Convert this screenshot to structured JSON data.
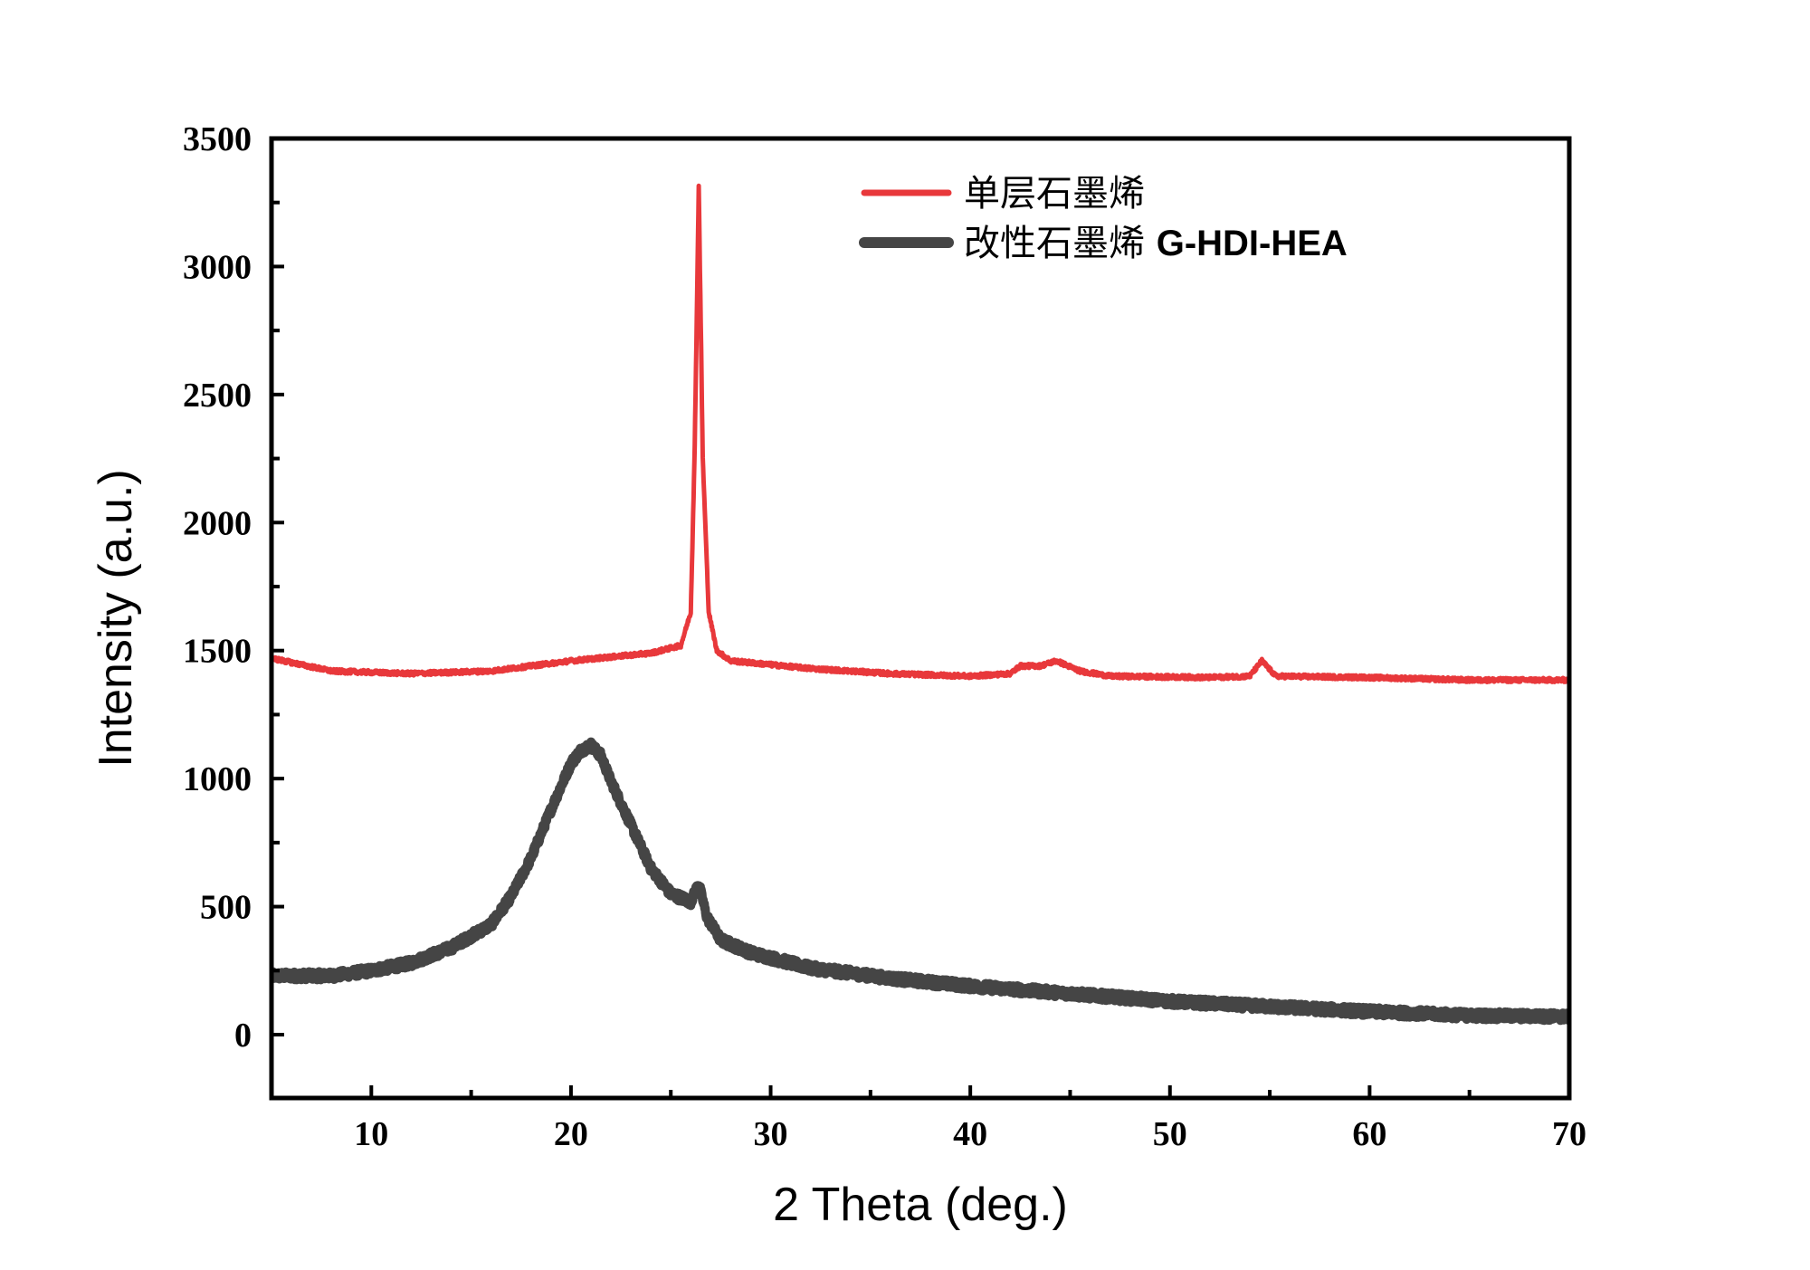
{
  "chart_data": {
    "type": "line",
    "title": "",
    "xlabel": "2 Theta (deg.)",
    "ylabel": "Intensity (a.u.)",
    "xlim": [
      5,
      70
    ],
    "ylim": [
      -250,
      3500
    ],
    "x_ticks": [
      10,
      20,
      30,
      40,
      50,
      60,
      70
    ],
    "y_ticks": [
      0,
      500,
      1000,
      1500,
      2000,
      2500,
      3000,
      3500
    ],
    "grid": false,
    "legend_position": "top-right",
    "series": [
      {
        "name": "单层石墨烯",
        "color": "#e8383b",
        "x": [
          5,
          8,
          12,
          16,
          20,
          24,
          25.5,
          26.0,
          26.2,
          26.4,
          26.6,
          26.9,
          27.3,
          28,
          32,
          36,
          40,
          42,
          42.5,
          43.5,
          44.3,
          45.5,
          47,
          52,
          54,
          54.6,
          55.3,
          60,
          65,
          70
        ],
        "y": [
          1470,
          1420,
          1410,
          1420,
          1460,
          1490,
          1520,
          1650,
          2300,
          3310,
          2250,
          1650,
          1500,
          1460,
          1430,
          1410,
          1400,
          1410,
          1440,
          1440,
          1460,
          1420,
          1400,
          1395,
          1400,
          1460,
          1400,
          1395,
          1385,
          1385
        ]
      },
      {
        "name": "改性石墨烯 G-HDI-HEA",
        "color": "#454545",
        "x": [
          5,
          8,
          10,
          12,
          14,
          16,
          17,
          18,
          19,
          20,
          20.5,
          21,
          21.5,
          22,
          23,
          24,
          25,
          26,
          26.4,
          26.8,
          27.5,
          29,
          32,
          36,
          40,
          45,
          50,
          55,
          60,
          65,
          70
        ],
        "y": [
          230,
          230,
          250,
          280,
          340,
          430,
          540,
          690,
          880,
          1060,
          1110,
          1130,
          1090,
          990,
          820,
          650,
          550,
          520,
          590,
          460,
          370,
          320,
          260,
          220,
          190,
          160,
          130,
          110,
          90,
          75,
          70
        ]
      }
    ]
  }
}
